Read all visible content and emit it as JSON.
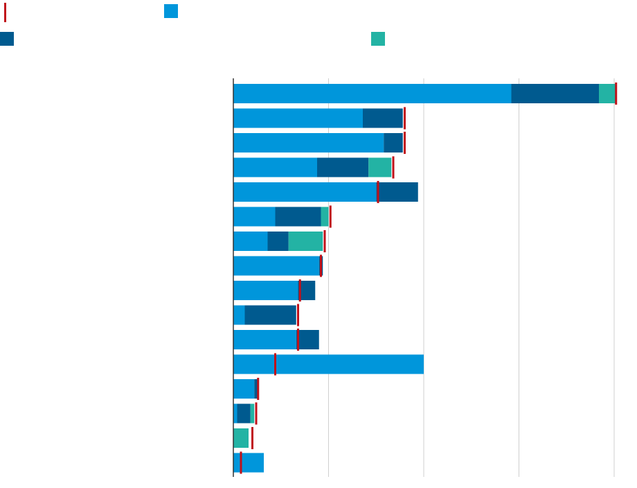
{
  "chart_data": {
    "type": "bar",
    "orientation": "horizontal",
    "stacked": true,
    "title": "",
    "xlabel": "",
    "ylabel": "",
    "xlim": [
      0,
      200
    ],
    "x_gridlines": [
      0,
      50,
      100,
      150,
      200
    ],
    "grid": true,
    "legend_position": "top-left",
    "categories": [
      "",
      "",
      "",
      "",
      "",
      "",
      "",
      "",
      "",
      "",
      "",
      "",
      "",
      "",
      "",
      ""
    ],
    "series": [
      {
        "color": "#0096db",
        "values": [
          146,
          68,
          79,
          44,
          75,
          22,
          18,
          45,
          34,
          6,
          33,
          100,
          11,
          2,
          0,
          16
        ]
      },
      {
        "color": "#005a8f",
        "values": [
          46,
          21,
          10,
          27,
          22,
          24,
          11,
          2,
          9,
          27,
          12,
          0,
          2,
          7,
          0,
          0
        ]
      },
      {
        "color": "#23b3a4",
        "values": [
          9,
          0,
          0,
          12,
          0,
          4,
          18,
          0,
          0,
          0,
          0,
          0,
          0,
          2,
          8,
          0
        ]
      }
    ],
    "markers": {
      "color": "#c0111a",
      "values": [
        201,
        90,
        90,
        84,
        76,
        51,
        48,
        46,
        35,
        34,
        34,
        22,
        13,
        12,
        10,
        4
      ]
    },
    "legend": [
      {
        "kind": "marker",
        "color": "#c0111a"
      },
      {
        "kind": "series",
        "series_index": 0,
        "color": "#0096db"
      },
      {
        "kind": "series",
        "series_index": 1,
        "color": "#005a8f"
      },
      {
        "kind": "series",
        "series_index": 2,
        "color": "#23b3a4"
      }
    ]
  }
}
